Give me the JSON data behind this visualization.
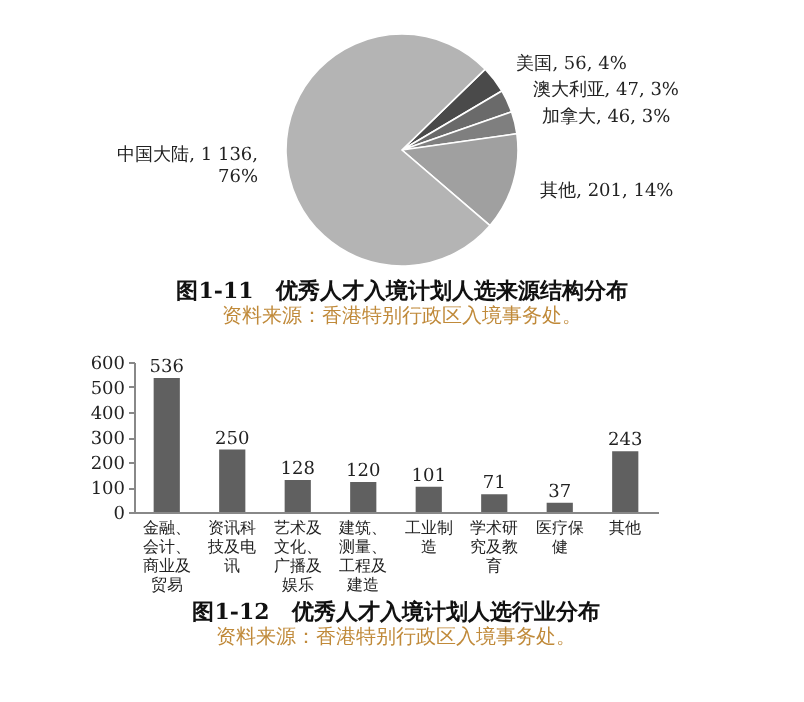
{
  "chart_data": [
    {
      "type": "pie",
      "title": "图1-11　优秀人才入境计划人选来源结构分布",
      "annotations": [
        "资料来源：香港特别行政区入境事务处。"
      ],
      "categories": [
        "美国",
        "澳大利亚",
        "加拿大",
        "其他",
        "中国大陆"
      ],
      "values": [
        56,
        47,
        46,
        201,
        1136
      ],
      "colors": [
        "#4a4a4a",
        "#6a6a6a",
        "#7f7f7f",
        "#a0a0a0",
        "#b4b4b4"
      ],
      "value_labels": [
        "56, 4%",
        "47, 3%",
        "46, 3%",
        "201, 14%",
        "1 136,\n76%"
      ]
    },
    {
      "type": "bar",
      "title": "图1-12　优秀人才入境计划人选行业分布",
      "annotations": [
        "资料来源：香港特别行政区入境事务处。"
      ],
      "categories": [
        "金融、会计、商业及贸易",
        "资讯科技及电讯",
        "艺术及文化、广播及娱乐",
        "建筑、测量、工程及建造",
        "工业制造",
        "学术研究及教育",
        "医疗保健",
        "其他"
      ],
      "values": [
        536,
        250,
        128,
        120,
        101,
        71,
        37,
        243
      ],
      "color": "#606060",
      "ylim": [
        0,
        600
      ],
      "yticks": [
        0,
        100,
        200,
        300,
        400,
        500,
        600
      ],
      "grid": false,
      "data_labels": true
    }
  ]
}
